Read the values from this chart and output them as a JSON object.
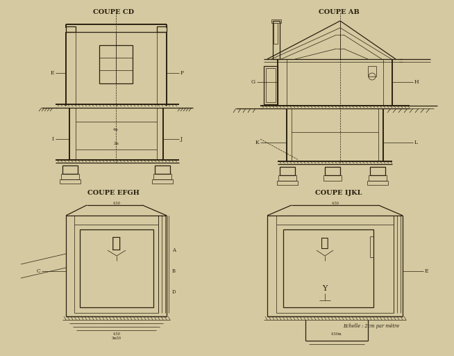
{
  "bg_color": "#d4c9a0",
  "line_color": "#2a2010",
  "fig_width": 6.54,
  "fig_height": 5.12,
  "labels": {
    "coupe_cd": "COUPE CD",
    "coupe_ab": "COUPE AB",
    "coupe_efgh": "COUPE EFGH",
    "coupe_ijkl": "COUPE IJKL",
    "echelle": "Echelle : 2cm par mètre"
  }
}
